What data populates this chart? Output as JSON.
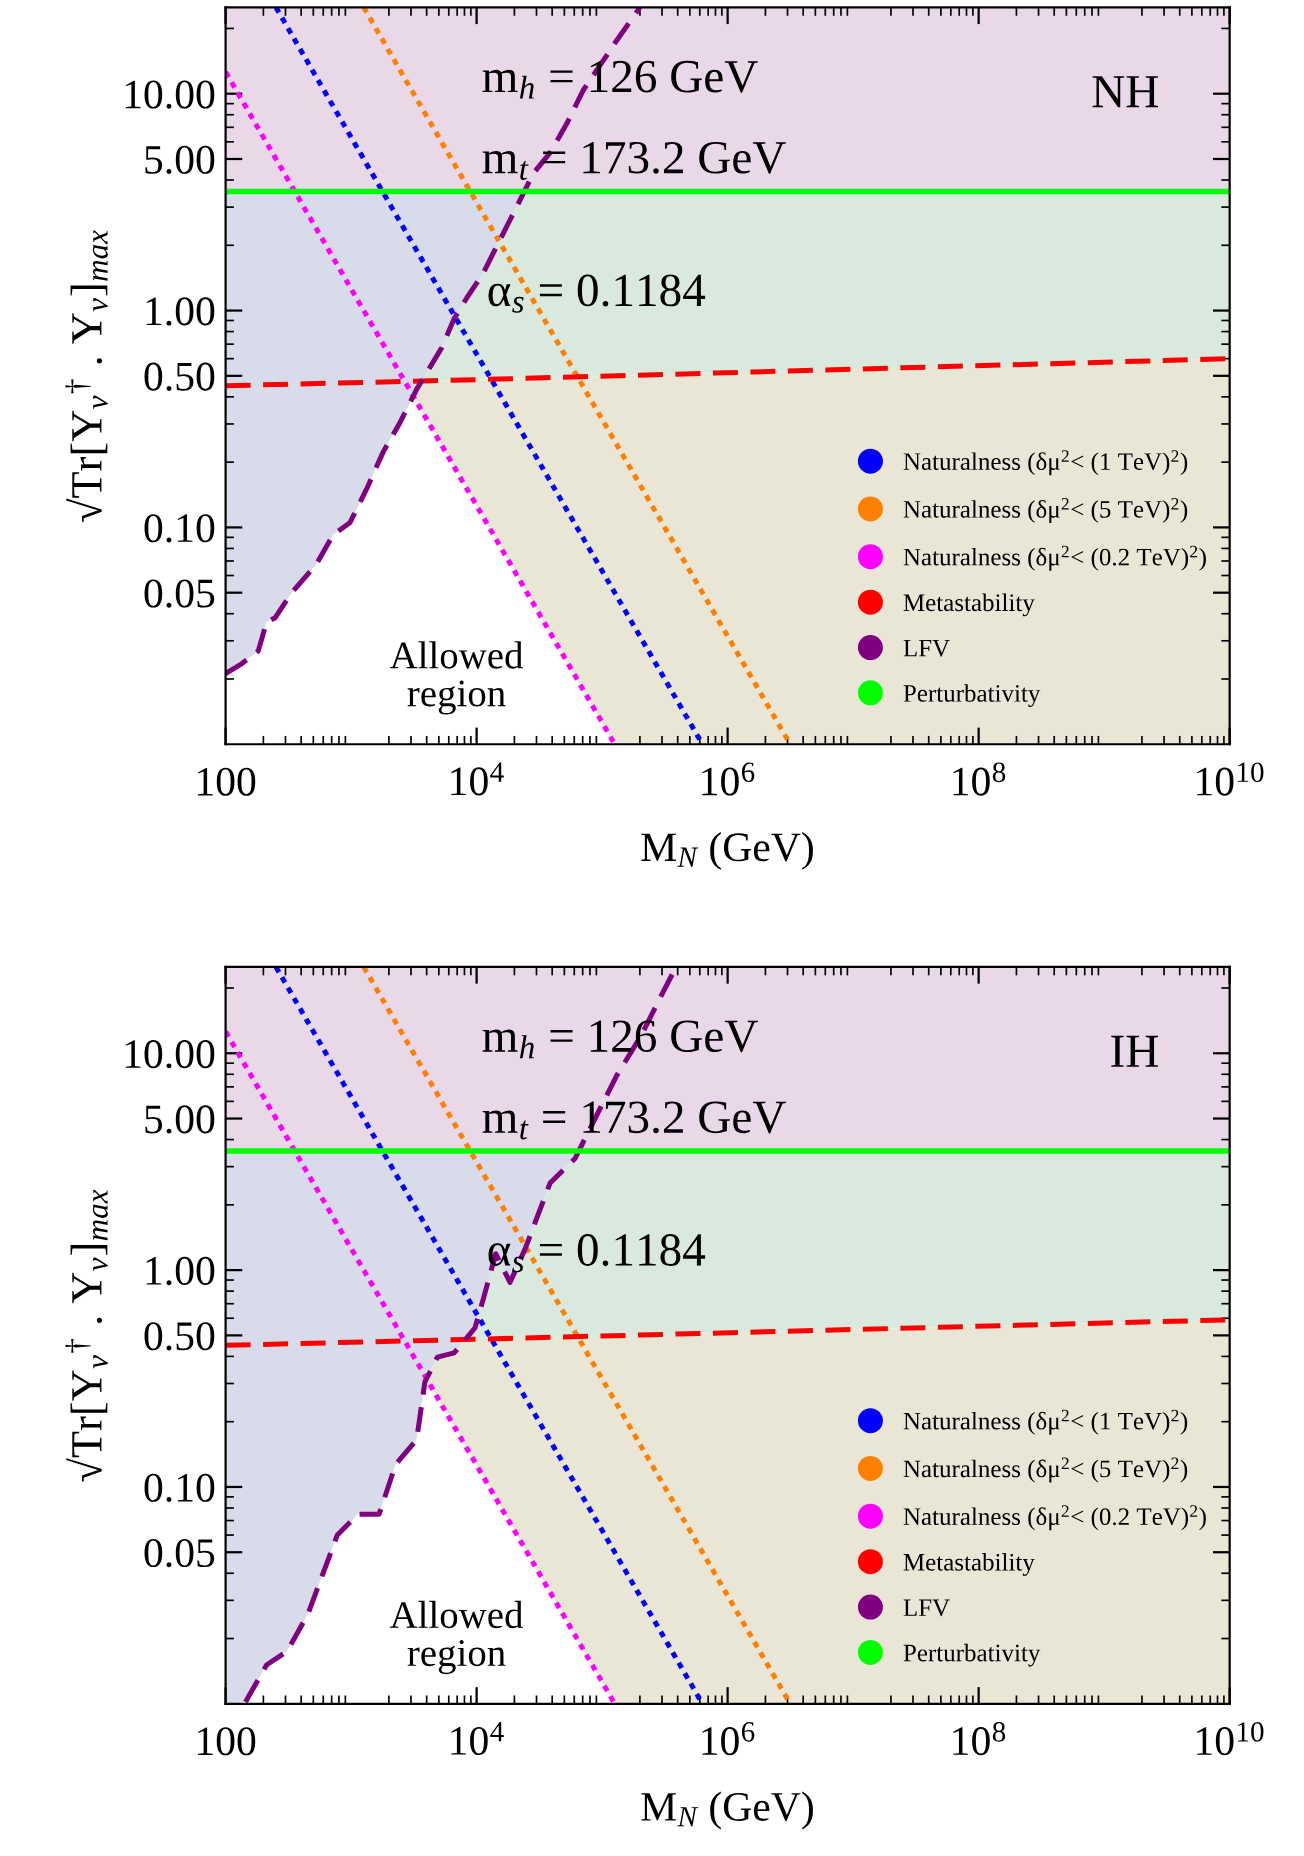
{
  "chart_data": [
    {
      "type": "line",
      "xlabel": "M$_{N}$ (GeV)",
      "ylabel": "√Tr[Y$_{ν}$$^{†}$ . Y$_{ν}$]$_{max}$",
      "log": "xy",
      "xlim": [
        100,
        10000000000
      ],
      "ylim": [
        0.01,
        25
      ],
      "xticks": [
        100,
        {
          "value": 10000,
          "label": "10$^{4}$"
        },
        {
          "value": 1000000,
          "label": "10$^{6}$"
        },
        {
          "value": 100000000,
          "label": "10$^{8}$"
        },
        {
          "value": 10000000000,
          "label": "10$^{10}$"
        }
      ],
      "yticks": [
        {
          "value": 0.05,
          "label": "0.05"
        },
        {
          "value": 0.1,
          "label": "0.10"
        },
        {
          "value": 0.5,
          "label": "0.50"
        },
        {
          "value": 1,
          "label": "1.00"
        },
        {
          "value": 5,
          "label": "5.00"
        },
        {
          "value": 10,
          "label": "10.00"
        }
      ],
      "legend": "bottom right",
      "grid": false,
      "annotations": [
        "m$_{h}$ = 126 GeV",
        "m$_{t}$ = 173.2 GeV",
        "α$_{s}$ = 0.1184",
        "NH",
        "Allowed\nregion"
      ],
      "bands": [
        {
          "axis": "y",
          "from": 3.54,
          "to": 25,
          "color": "#e8d8e8"
        }
      ],
      "series": [
        {
          "name": "Naturalness (δμ$^{2}$< (1 TeV)$^{2}$)",
          "color": "#0000ff",
          "line_style": "dotted",
          "x": [
            252,
            630000
          ],
          "values": [
            25,
            0.01
          ]
        },
        {
          "name": "Naturalness (δμ$^{2}$< (5 TeV)$^{2}$)",
          "color": "#ff8000",
          "line_style": "dotted",
          "x": [
            1260,
            3150000
          ],
          "values": [
            25,
            0.01
          ]
        },
        {
          "name": "Naturalness (δμ$^{2}$< (0.2 TeV)$^{2}$)",
          "color": "#ff00ff",
          "line_style": "dotted",
          "x": [
            100,
            126000
          ],
          "values": [
            12.6,
            0.01
          ]
        },
        {
          "name": "Metastability",
          "color": "#ff0000",
          "line_style": "dashed",
          "x": [
            100,
            10000,
            10000000000
          ],
          "values": [
            0.45,
            0.48,
            0.6
          ]
        },
        {
          "name": "LFV",
          "color": "#800080",
          "line_style": "dashed",
          "x": [
            100,
            134,
            182,
            212,
            247,
            335,
            530,
            719,
            977,
            1327,
            1803,
            2449,
            3326,
            5265,
            6620,
            8320,
            11300,
            15350,
            20850,
            28300,
            38500,
            52300,
            70800,
            96200,
            130600,
            200000
          ],
          "values": [
            0.0212,
            0.0235,
            0.0269,
            0.0366,
            0.0382,
            0.0498,
            0.0678,
            0.0924,
            0.105,
            0.15,
            0.223,
            0.304,
            0.433,
            0.673,
            0.916,
            1.14,
            1.49,
            2.12,
            3.01,
            4.29,
            5.35,
            7.28,
            10.4,
            13.5,
            17.6,
            25
          ]
        },
        {
          "name": "Perturbativity",
          "color": "#00ff00",
          "line_style": "solid",
          "x": [
            100,
            10000000000
          ],
          "values": [
            3.54,
            3.54
          ]
        }
      ]
    },
    {
      "type": "line",
      "xlabel": "M$_{N}$ (GeV)",
      "ylabel": "√Tr[Y$_{ν}$$^{†}$ . Y$_{ν}$]$_{max}$",
      "log": "xy",
      "xlim": [
        100,
        10000000000
      ],
      "ylim": [
        0.01,
        25
      ],
      "xticks": [
        100,
        {
          "value": 10000,
          "label": "10$^{4}$"
        },
        {
          "value": 1000000,
          "label": "10$^{6}$"
        },
        {
          "value": 100000000,
          "label": "10$^{8}$"
        },
        {
          "value": 10000000000,
          "label": "10$^{10}$"
        }
      ],
      "yticks": [
        {
          "value": 0.05,
          "label": "0.05"
        },
        {
          "value": 0.1,
          "label": "0.10"
        },
        {
          "value": 0.5,
          "label": "0.50"
        },
        {
          "value": 1,
          "label": "1.00"
        },
        {
          "value": 5,
          "label": "5.00"
        },
        {
          "value": 10,
          "label": "10.00"
        }
      ],
      "legend": "bottom right",
      "grid": false,
      "annotations": [
        "m$_{h}$ = 126 GeV",
        "m$_{t}$ = 173.2 GeV",
        "α$_{s}$ = 0.1184",
        "IH",
        "Allowed\nregion"
      ],
      "bands": [
        {
          "axis": "y",
          "from": 3.54,
          "to": 25,
          "color": "#e8d8e8"
        }
      ],
      "series": [
        {
          "name": "Naturalness (δμ$^{2}$< (1 TeV)$^{2}$)",
          "color": "#0000ff",
          "line_style": "dotted",
          "x": [
            252,
            630000
          ],
          "values": [
            25,
            0.01
          ]
        },
        {
          "name": "Naturalness (δμ$^{2}$< (5 TeV)$^{2}$)",
          "color": "#ff8000",
          "line_style": "dotted",
          "x": [
            1260,
            3150000
          ],
          "values": [
            25,
            0.01
          ]
        },
        {
          "name": "Naturalness (δμ$^{2}$< (0.2 TeV)$^{2}$)",
          "color": "#ff00ff",
          "line_style": "dotted",
          "x": [
            100,
            126000
          ],
          "values": [
            12.6,
            0.01
          ]
        },
        {
          "name": "Metastability",
          "color": "#ff0000",
          "line_style": "dashed",
          "x": [
            100,
            10000,
            10000000000
          ],
          "values": [
            0.45,
            0.48,
            0.59
          ]
        },
        {
          "name": "LFV",
          "color": "#800080",
          "line_style": "dashed",
          "x": [
            144,
            212,
            310,
            455,
            777,
            1138,
            1670,
            2266,
            3326,
            3873,
            4875,
            6620,
            9700,
            11300,
            14200,
            18450,
            24300,
            38500,
            60800,
            76500,
            130600,
            207000,
            281000,
            370000
          ],
          "values": [
            0.0102,
            0.0151,
            0.0175,
            0.0261,
            0.0601,
            0.0748,
            0.0748,
            0.127,
            0.165,
            0.305,
            0.397,
            0.415,
            0.541,
            0.735,
            1.19,
            0.877,
            1.25,
            2.52,
            3.27,
            4.26,
            7.89,
            12.2,
            17.4,
            23.7
          ]
        },
        {
          "name": "Perturbativity",
          "color": "#00ff00",
          "line_style": "solid",
          "x": [
            100,
            10000000000
          ],
          "values": [
            3.54,
            3.54
          ]
        }
      ]
    }
  ]
}
